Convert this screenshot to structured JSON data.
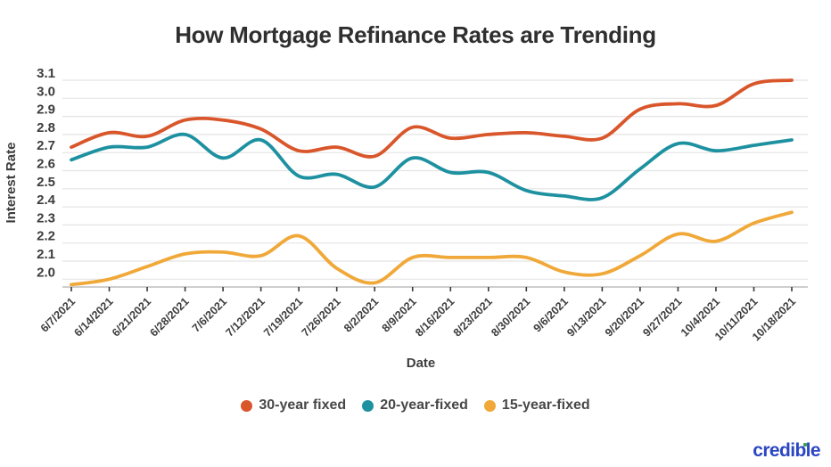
{
  "title": "How Mortgage Refinance Rates are Trending",
  "watermark": "credible",
  "colors": {
    "series_30yr": "#d9562b",
    "series_20yr": "#1e91a1",
    "series_15yr": "#f0a838",
    "grid": "#e4e4e4",
    "baseline": "#bdbdbd",
    "tick_mark": "#3a3a3a",
    "axis_text": "#3d3d3d",
    "title_text": "#2f2f2f",
    "logo_blue": "#2b46c2",
    "logo_green": "#3f9e4d"
  },
  "chart_data": {
    "type": "line",
    "title": "How Mortgage Refinance Rates are Trending",
    "xlabel": "Date",
    "ylabel": "Interest Rate",
    "grid": true,
    "legend_position": "bottom",
    "ylim": [
      1.95,
      3.1
    ],
    "y_ticks": [
      "3.1",
      "3.0",
      "2.9",
      "2.8",
      "2.7",
      "2.6",
      "2.5",
      "2.4",
      "2.3",
      "2.2",
      "2.1",
      "2.0"
    ],
    "x": [
      "6/7/2021",
      "6/14/2021",
      "6/21/2021",
      "6/28/2021",
      "7/6/2021",
      "7/12/2021",
      "7/19/2021",
      "7/26/2021",
      "8/2/2021",
      "8/9/2021",
      "8/16/2021",
      "8/23/2021",
      "8/30/2021",
      "9/6/2021",
      "9/13/2021",
      "9/20/2021",
      "9/27/2021",
      "10/4/2021",
      "10/11/2021",
      "10/18/2021"
    ],
    "series": [
      {
        "name": "30-year fixed",
        "color": "#d9562b",
        "values": [
          2.73,
          2.81,
          2.79,
          2.88,
          2.88,
          2.83,
          2.71,
          2.73,
          2.68,
          2.84,
          2.78,
          2.8,
          2.81,
          2.79,
          2.78,
          2.94,
          2.97,
          2.96,
          3.08,
          3.1
        ]
      },
      {
        "name": "20-year-fixed",
        "color": "#1e91a1",
        "values": [
          2.66,
          2.73,
          2.73,
          2.8,
          2.67,
          2.77,
          2.57,
          2.58,
          2.51,
          2.67,
          2.59,
          2.59,
          2.49,
          2.46,
          2.45,
          2.61,
          2.75,
          2.71,
          2.74,
          2.77
        ]
      },
      {
        "name": "15-year-fixed",
        "color": "#f0a838",
        "values": [
          1.97,
          2.0,
          2.07,
          2.14,
          2.15,
          2.13,
          2.24,
          2.06,
          1.98,
          2.12,
          2.12,
          2.12,
          2.12,
          2.04,
          2.03,
          2.13,
          2.25,
          2.21,
          2.31,
          2.37
        ]
      }
    ]
  }
}
